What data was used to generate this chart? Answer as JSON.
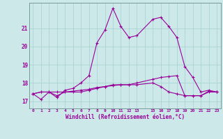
{
  "xlabel": "Windchill (Refroidissement éolien,°C)",
  "bg_color": "#cce8e8",
  "grid_color": "#aad4d4",
  "line_color": "#990099",
  "x_indices": [
    0,
    1,
    2,
    3,
    4,
    5,
    6,
    7,
    8,
    9,
    10,
    11,
    12,
    13,
    14,
    15,
    16,
    17,
    18,
    19,
    20,
    21,
    22,
    23
  ],
  "x_tick_labels": [
    "0",
    "1",
    "2",
    "3",
    "4",
    "5",
    "6",
    "7",
    "8",
    "9",
    "10",
    "11",
    "12",
    "13",
    "",
    "15",
    "16",
    "17",
    "18",
    "19",
    "20",
    "21",
    "22",
    "23"
  ],
  "y_ticks": [
    17,
    18,
    19,
    20,
    21
  ],
  "ylim": [
    16.6,
    22.4
  ],
  "xlim": [
    -0.5,
    23.5
  ],
  "series1_x": [
    0,
    1,
    2,
    3,
    4,
    5,
    6,
    7,
    8,
    9,
    10,
    11,
    12,
    13,
    15,
    16,
    17,
    18,
    19,
    20,
    21,
    22,
    23
  ],
  "series1_y": [
    17.4,
    17.1,
    17.5,
    17.2,
    17.6,
    17.7,
    18.0,
    18.4,
    20.2,
    20.9,
    22.1,
    21.1,
    20.5,
    20.6,
    21.5,
    21.6,
    21.1,
    20.5,
    18.9,
    18.3,
    17.5,
    17.6,
    17.5
  ],
  "series2_x": [
    0,
    1,
    2,
    3,
    4,
    5,
    6,
    7,
    8,
    9,
    10,
    11,
    12,
    13,
    15,
    16,
    17,
    18,
    19,
    20,
    21,
    22,
    23
  ],
  "series2_y": [
    17.4,
    17.5,
    17.5,
    17.5,
    17.5,
    17.5,
    17.5,
    17.6,
    17.7,
    17.8,
    17.9,
    17.9,
    17.9,
    18.0,
    18.2,
    18.3,
    18.35,
    18.4,
    17.3,
    17.3,
    17.3,
    17.55,
    17.5
  ],
  "series3_x": [
    0,
    1,
    2,
    3,
    4,
    5,
    6,
    7,
    8,
    9,
    10,
    11,
    12,
    13,
    15,
    16,
    17,
    18,
    19,
    20,
    21,
    22,
    23
  ],
  "series3_y": [
    17.4,
    17.5,
    17.5,
    17.3,
    17.5,
    17.55,
    17.6,
    17.65,
    17.75,
    17.8,
    17.85,
    17.9,
    17.9,
    17.9,
    18.0,
    17.8,
    17.5,
    17.4,
    17.3,
    17.3,
    17.3,
    17.5,
    17.5
  ]
}
